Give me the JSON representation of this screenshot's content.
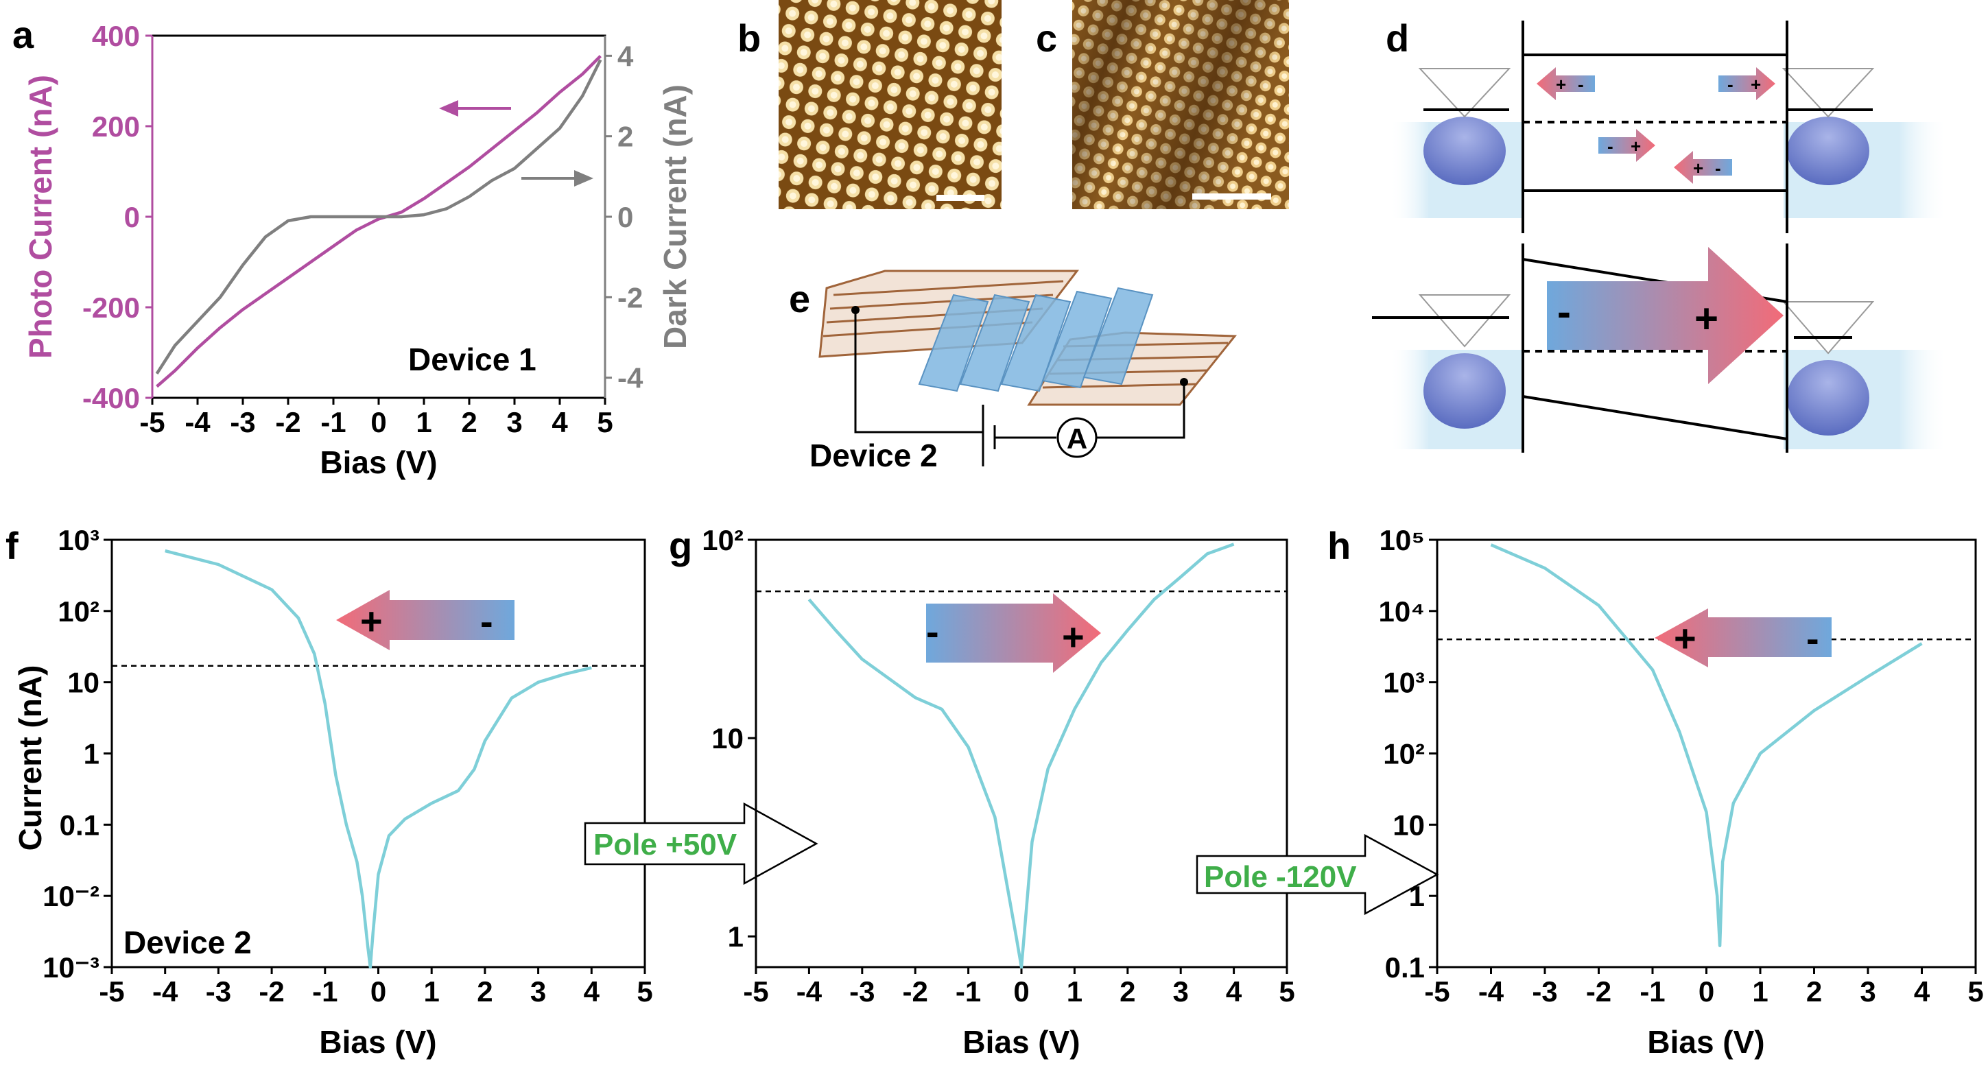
{
  "panel_letters": {
    "a": "a",
    "b": "b",
    "c": "c",
    "d": "d",
    "e": "e",
    "f": "f",
    "g": "g",
    "h": "h"
  },
  "arrow_labels": {
    "pole_pos": "Pole +50V",
    "pole_neg": "Pole -120V"
  },
  "charge_signs": {
    "plus": "+",
    "minus": "-"
  },
  "device_e": {
    "label": "Device 2",
    "ammeter": "A"
  },
  "chart_data": [
    {
      "id": "a",
      "type": "line",
      "xlabel": "Bias (V)",
      "ylabel": "Photo Current (nA)",
      "y2label": "Dark Current (nA)",
      "xlim": [
        -5,
        5
      ],
      "ylim": [
        -400,
        400
      ],
      "y2lim": [
        -4.5,
        4.5
      ],
      "xticks": [
        "-5",
        "-4",
        "-3",
        "-2",
        "-1",
        "0",
        "1",
        "2",
        "3",
        "4",
        "5"
      ],
      "yticks": [
        "400",
        "200",
        "0",
        "-200",
        "-400"
      ],
      "y2ticks": [
        "4",
        "2",
        "0",
        "-2",
        "-4"
      ],
      "annotation": "Device 1",
      "colors": {
        "photo": "#b04da0",
        "dark": "#7f7f7f"
      },
      "series": [
        {
          "name": "Photo Current",
          "axis": "left",
          "x": [
            -4.9,
            -4.5,
            -4,
            -3.5,
            -3,
            -2.5,
            -2,
            -1.5,
            -1,
            -0.5,
            0,
            0.5,
            1,
            1.5,
            2,
            2.5,
            3,
            3.5,
            4,
            4.5,
            4.9
          ],
          "y": [
            -375,
            -340,
            -290,
            -245,
            -205,
            -170,
            -135,
            -100,
            -65,
            -30,
            -5,
            10,
            40,
            75,
            110,
            150,
            190,
            230,
            275,
            315,
            355
          ]
        },
        {
          "name": "Dark Current",
          "axis": "right",
          "x": [
            -4.9,
            -4.5,
            -4,
            -3.5,
            -3,
            -2.5,
            -2,
            -1.5,
            -1,
            -0.5,
            0,
            0.5,
            1,
            1.5,
            2,
            2.5,
            3,
            3.5,
            4,
            4.5,
            4.9
          ],
          "y": [
            -3.9,
            -3.2,
            -2.6,
            -2.0,
            -1.2,
            -0.5,
            -0.1,
            0,
            0,
            0,
            0,
            0,
            0.05,
            0.2,
            0.5,
            0.9,
            1.2,
            1.7,
            2.2,
            3.0,
            3.9
          ]
        }
      ]
    },
    {
      "id": "f",
      "type": "line",
      "yscale": "log",
      "xlabel": "Bias (V)",
      "ylabel": "Current (nA)",
      "xlim": [
        -5,
        5
      ],
      "ylim": [
        0.001,
        1000
      ],
      "hline": 17,
      "xticks": [
        "-5",
        "-4",
        "-3",
        "-2",
        "-1",
        "0",
        "1",
        "2",
        "3",
        "4",
        "5"
      ],
      "yticks": [
        "10³",
        "10²",
        "10",
        "1",
        "0.1",
        "10⁻²",
        "10⁻³"
      ],
      "annotation": "Device 2",
      "color": "#7ecfd8",
      "series": [
        {
          "name": "",
          "x": [
            -4,
            -3,
            -2,
            -1.5,
            -1.2,
            -1,
            -0.8,
            -0.6,
            -0.4,
            -0.3,
            -0.2,
            -0.15,
            -0.1,
            0,
            0.2,
            0.5,
            1,
            1.5,
            1.8,
            2,
            2.5,
            3,
            3.5,
            4
          ],
          "y": [
            700,
            450,
            200,
            80,
            25,
            5,
            0.5,
            0.1,
            0.03,
            0.01,
            0.002,
            0.001,
            0.003,
            0.02,
            0.07,
            0.12,
            0.2,
            0.3,
            0.6,
            1.5,
            6,
            10,
            13,
            16
          ]
        }
      ]
    },
    {
      "id": "g",
      "type": "line",
      "yscale": "log",
      "xlabel": "Bias (V)",
      "ylabel": "",
      "xlim": [
        -5,
        5
      ],
      "ylim": [
        0.7,
        100
      ],
      "hline": 55,
      "xticks": [
        "-5",
        "-4",
        "-3",
        "-2",
        "-1",
        "0",
        "1",
        "2",
        "3",
        "4",
        "5"
      ],
      "yticks": [
        "10²",
        "10",
        "1"
      ],
      "color": "#7ecfd8",
      "series": [
        {
          "name": "",
          "x": [
            -4,
            -3.5,
            -3,
            -2.5,
            -2,
            -1.5,
            -1,
            -0.5,
            -0.3,
            -0.1,
            0,
            0.2,
            0.5,
            1,
            1.5,
            2,
            2.5,
            3,
            3.5,
            4
          ],
          "y": [
            50,
            35,
            25,
            20,
            16,
            14,
            9,
            4,
            2,
            1,
            0.7,
            3,
            7,
            14,
            24,
            35,
            50,
            65,
            85,
            95
          ]
        }
      ]
    },
    {
      "id": "h",
      "type": "line",
      "yscale": "log",
      "xlabel": "Bias (V)",
      "ylabel": "",
      "xlim": [
        -5,
        5
      ],
      "ylim": [
        0.1,
        100000
      ],
      "hline": 4000,
      "xticks": [
        "-5",
        "-4",
        "-3",
        "-2",
        "-1",
        "0",
        "1",
        "2",
        "3",
        "4",
        "5"
      ],
      "yticks": [
        "10⁵",
        "10⁴",
        "10³",
        "10²",
        "10",
        "1",
        "0.1"
      ],
      "color": "#7ecfd8",
      "series": [
        {
          "name": "",
          "x": [
            -4,
            -3,
            -2,
            -1,
            -0.5,
            0,
            0.2,
            0.25,
            0.3,
            0.5,
            1,
            2,
            3,
            4
          ],
          "y": [
            85000,
            40000,
            12000,
            1500,
            200,
            15,
            1,
            0.2,
            3,
            20,
            100,
            400,
            1200,
            3500
          ]
        }
      ]
    }
  ]
}
